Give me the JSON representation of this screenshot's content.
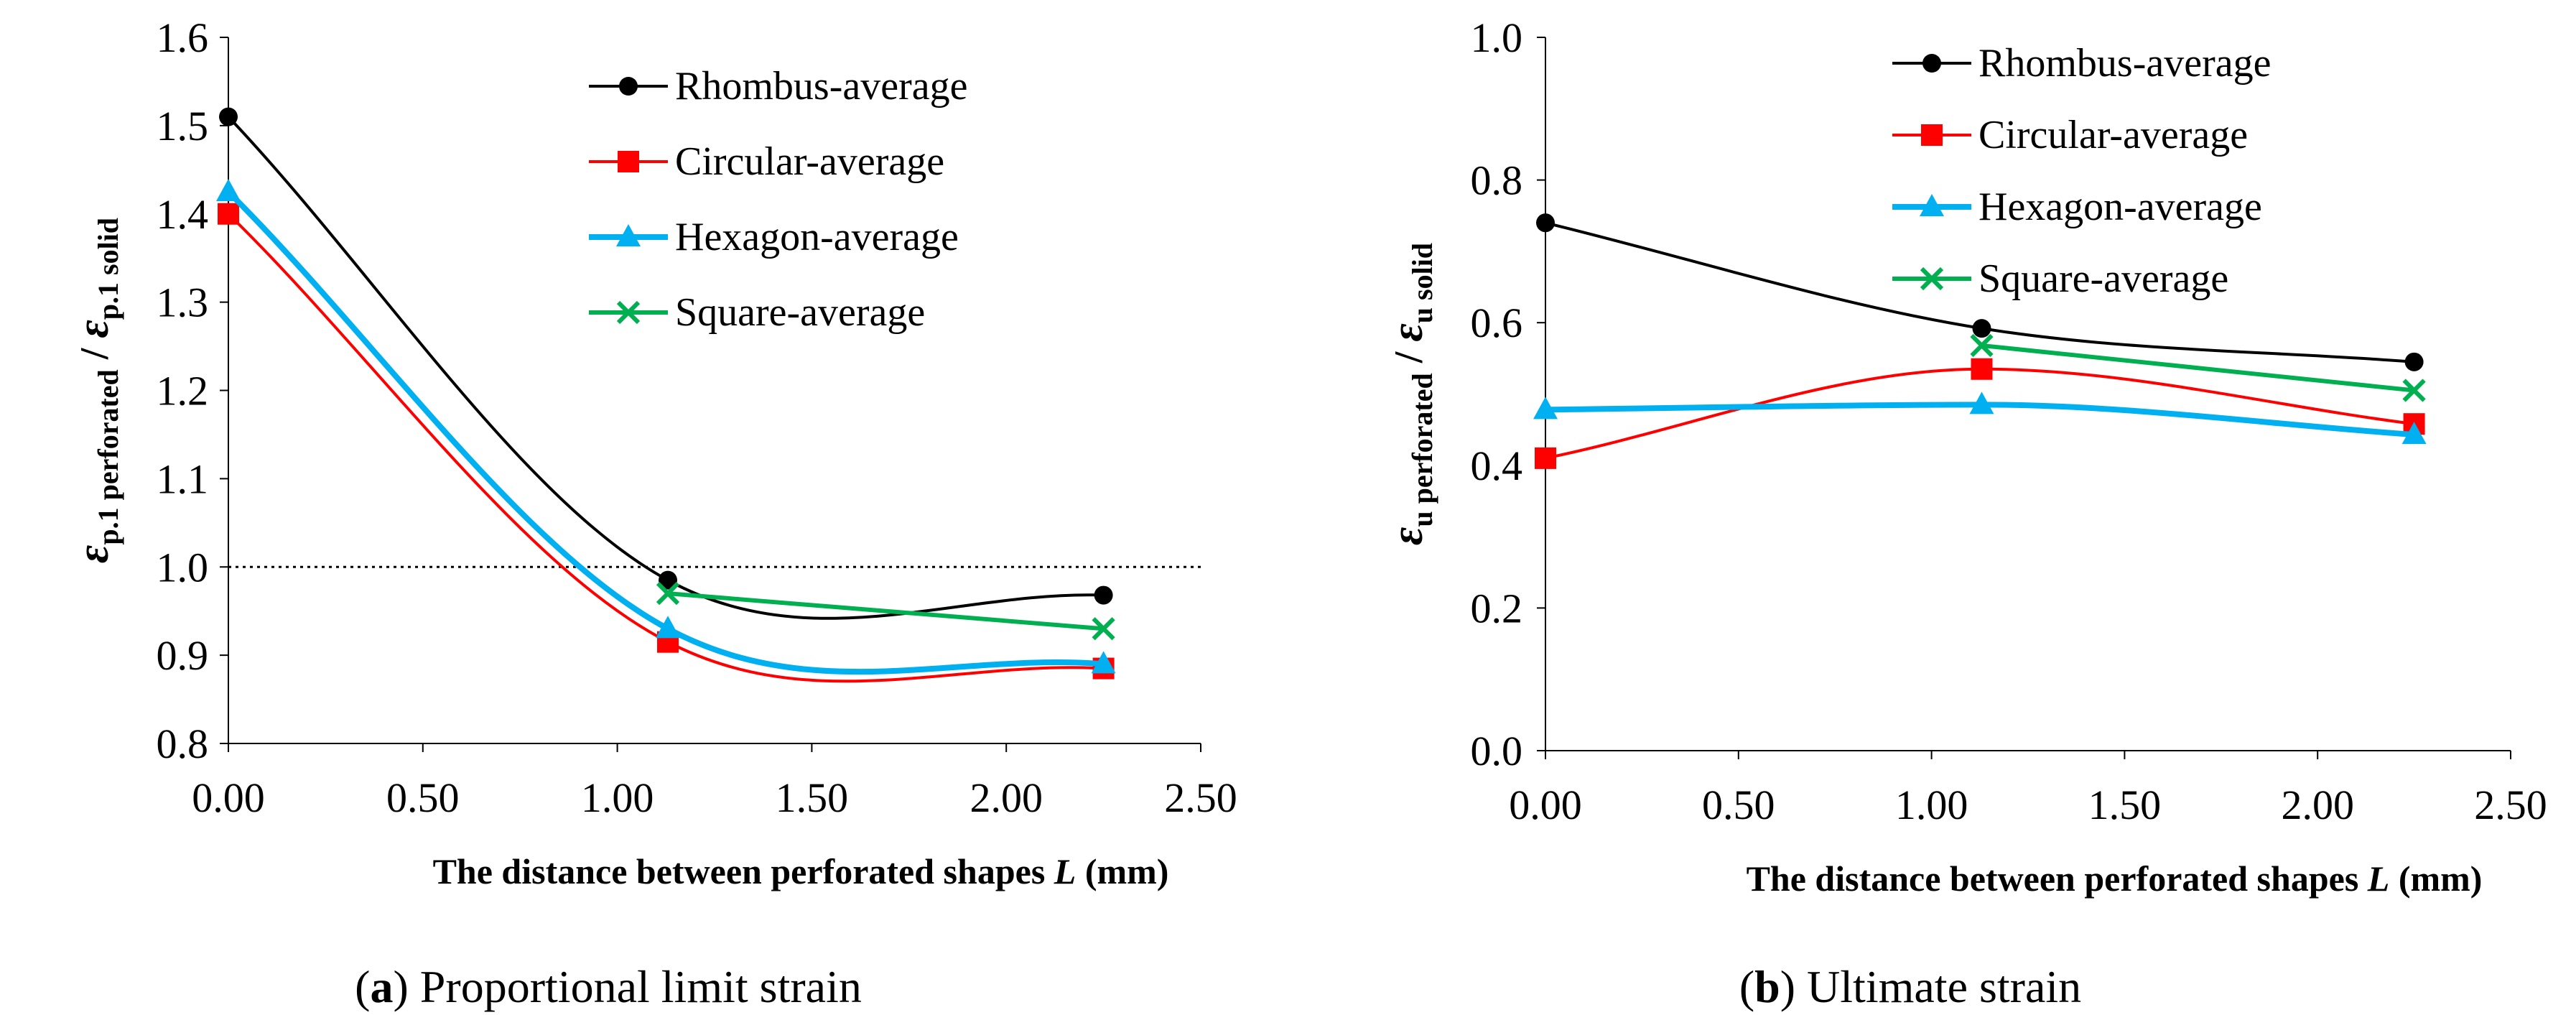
{
  "figure": {
    "captions": [
      {
        "letter": "a",
        "text": "Proportional limit strain"
      },
      {
        "letter": "b",
        "text": "Ultimate strain"
      }
    ]
  },
  "chart_data": [
    {
      "type": "line",
      "xlabel": "The distance between perforated shapes",
      "xlabel_var": "L",
      "xlabel_unit": "(mm)",
      "ylabel": {
        "symbol": "ε",
        "numerator_sub": "p.1 perforated",
        "denominator_sub": "p.1 solid"
      },
      "xlim": [
        0,
        2.5
      ],
      "ylim": [
        0.8,
        1.6
      ],
      "x_ticks": [
        "0.00",
        "0.50",
        "1.00",
        "1.50",
        "2.00",
        "2.50"
      ],
      "y_ticks": [
        "0.8",
        "0.9",
        "1.0",
        "1.1",
        "1.2",
        "1.3",
        "1.4",
        "1.5",
        "1.6"
      ],
      "reference_line": {
        "y": 1.0,
        "style": "dotted"
      },
      "grid": false,
      "legend_position": "top-right",
      "x": [
        0,
        1.13,
        2.25
      ],
      "series": [
        {
          "name": "Rhombus-average",
          "color": "#000000",
          "marker": "circle",
          "values": [
            1.51,
            0.985,
            0.968
          ]
        },
        {
          "name": "Circular-average",
          "color": "#ff0000",
          "marker": "square",
          "values": [
            1.4,
            0.915,
            0.885
          ]
        },
        {
          "name": "Hexagon-average",
          "color": "#00b0f0",
          "marker": "triangle",
          "values": [
            1.425,
            0.93,
            0.89
          ]
        },
        {
          "name": "Square-average",
          "color": "#00b050",
          "marker": "x",
          "values": [
            null,
            0.97,
            0.93
          ],
          "smooth": false
        }
      ]
    },
    {
      "type": "line",
      "xlabel": "The distance between perforated shapes",
      "xlabel_var": "L",
      "xlabel_unit": "(mm)",
      "ylabel": {
        "symbol": "ε",
        "numerator_sub": "u perforated",
        "denominator_sub": "u solid"
      },
      "xlim": [
        0,
        2.5
      ],
      "ylim": [
        0,
        1.0
      ],
      "x_ticks": [
        "0.00",
        "0.50",
        "1.00",
        "1.50",
        "2.00",
        "2.50"
      ],
      "y_ticks": [
        "0.0",
        "0.2",
        "0.4",
        "0.6",
        "0.8",
        "1.0"
      ],
      "grid": false,
      "legend_position": "top-right",
      "x": [
        0,
        1.13,
        2.25
      ],
      "series": [
        {
          "name": "Rhombus-average",
          "color": "#000000",
          "marker": "circle",
          "values": [
            0.74,
            0.592,
            0.545
          ]
        },
        {
          "name": "Circular-average",
          "color": "#ff0000",
          "marker": "square",
          "values": [
            0.41,
            0.535,
            0.458
          ]
        },
        {
          "name": "Hexagon-average",
          "color": "#00b0f0",
          "marker": "triangle",
          "values": [
            0.478,
            0.485,
            0.443
          ]
        },
        {
          "name": "Square-average",
          "color": "#00b050",
          "marker": "x",
          "values": [
            null,
            0.568,
            0.505
          ],
          "smooth": false
        }
      ]
    }
  ]
}
